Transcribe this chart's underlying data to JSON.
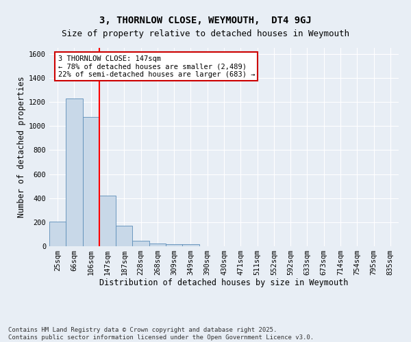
{
  "title_line1": "3, THORNLOW CLOSE, WEYMOUTH,  DT4 9GJ",
  "title_line2": "Size of property relative to detached houses in Weymouth",
  "xlabel": "Distribution of detached houses by size in Weymouth",
  "ylabel": "Number of detached properties",
  "categories": [
    "25sqm",
    "66sqm",
    "106sqm",
    "147sqm",
    "187sqm",
    "228sqm",
    "268sqm",
    "309sqm",
    "349sqm",
    "390sqm",
    "430sqm",
    "471sqm",
    "511sqm",
    "552sqm",
    "592sqm",
    "633sqm",
    "673sqm",
    "714sqm",
    "754sqm",
    "795sqm",
    "835sqm"
  ],
  "values": [
    205,
    1230,
    1075,
    420,
    170,
    45,
    25,
    15,
    15,
    0,
    0,
    0,
    0,
    0,
    0,
    0,
    0,
    0,
    0,
    0,
    0
  ],
  "bar_color": "#c8d8e8",
  "bar_edge_color": "#5b8db8",
  "ylim": [
    0,
    1650
  ],
  "yticks": [
    0,
    200,
    400,
    600,
    800,
    1000,
    1200,
    1400,
    1600
  ],
  "annotation_text": "3 THORNLOW CLOSE: 147sqm\n← 78% of detached houses are smaller (2,489)\n22% of semi-detached houses are larger (683) →",
  "annotation_box_facecolor": "#ffffff",
  "annotation_box_edgecolor": "#cc0000",
  "footer_line1": "Contains HM Land Registry data © Crown copyright and database right 2025.",
  "footer_line2": "Contains public sector information licensed under the Open Government Licence v3.0.",
  "background_color": "#e8eef5",
  "grid_color": "#ffffff",
  "title_fontsize": 10,
  "subtitle_fontsize": 9,
  "axis_label_fontsize": 8.5,
  "tick_fontsize": 7.5,
  "annotation_fontsize": 7.5,
  "footer_fontsize": 6.5,
  "red_line_index": 2.5
}
